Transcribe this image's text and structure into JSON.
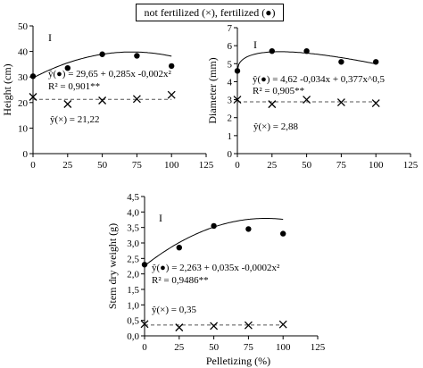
{
  "legend_text": "not fertilized (×), fertilized (●)",
  "chart_data": [
    {
      "type": "scatter",
      "ylabel": "Height (cm)",
      "xlabel": "",
      "xlim": [
        0,
        125
      ],
      "ylim": [
        0,
        50
      ],
      "xticks": [
        "0",
        "25",
        "50",
        "75",
        "100",
        "125"
      ],
      "yticks": [
        "0",
        "10",
        "20",
        "30",
        "40",
        "50"
      ],
      "grid": false,
      "error_bar_label": "I",
      "series": [
        {
          "marker": "filled-circle",
          "x": [
            0,
            25,
            50,
            75,
            100
          ],
          "y": [
            30.3,
            33.5,
            38.9,
            38.3,
            34.3
          ],
          "fit": {
            "kind": "quadratic",
            "a": 29.65,
            "b": 0.285,
            "c": -0.002
          }
        },
        {
          "marker": "cross",
          "x": [
            0,
            25,
            50,
            75,
            100
          ],
          "y": [
            22.2,
            19.4,
            20.8,
            21.4,
            23.0
          ],
          "fit": {
            "kind": "constant",
            "value": 21.22
          }
        }
      ],
      "annotations": [
        "ŷ(●) = 29,65 + 0,285x -0,002x²",
        "R² = 0,901**",
        "ŷ(×) = 21,22"
      ]
    },
    {
      "type": "scatter",
      "ylabel": "Diameter (mm)",
      "xlabel": "",
      "xlim": [
        0,
        125
      ],
      "ylim": [
        0,
        7
      ],
      "xticks": [
        "0",
        "25",
        "50",
        "75",
        "100",
        "125"
      ],
      "yticks": [
        "0",
        "1",
        "2",
        "3",
        "4",
        "5",
        "6",
        "7"
      ],
      "grid": false,
      "error_bar_label": "I",
      "series": [
        {
          "marker": "filled-circle",
          "x": [
            0,
            25,
            50,
            75,
            100
          ],
          "y": [
            4.6,
            5.7,
            5.7,
            5.1,
            5.1
          ],
          "fit": {
            "kind": "sqrt",
            "a": 4.62,
            "b": -0.034,
            "c": 0.377
          }
        },
        {
          "marker": "cross",
          "x": [
            0,
            25,
            50,
            75,
            100
          ],
          "y": [
            3.0,
            2.75,
            3.0,
            2.85,
            2.8
          ],
          "fit": {
            "kind": "constant",
            "value": 2.88
          }
        }
      ],
      "annotations": [
        "ŷ(●) = 4,62 -0,034x + 0,377x^0,5",
        "R² = 0,905**",
        "ŷ(×) = 2,88"
      ]
    },
    {
      "type": "scatter",
      "ylabel": "Stem dry weight (g)",
      "xlabel": "Pelletizing (%)",
      "xlim": [
        0,
        125
      ],
      "ylim": [
        0,
        4.5
      ],
      "xticks": [
        "0",
        "25",
        "50",
        "75",
        "100",
        "125"
      ],
      "yticks": [
        "0,0",
        "0,5",
        "1,0",
        "1,5",
        "2,0",
        "2,5",
        "3,0",
        "3,5",
        "4,0",
        "4,5"
      ],
      "grid": false,
      "error_bar_label": "I",
      "series": [
        {
          "marker": "filled-circle",
          "x": [
            0,
            25,
            50,
            75,
            100
          ],
          "y": [
            2.3,
            2.85,
            3.55,
            3.45,
            3.3
          ],
          "fit": {
            "kind": "quadratic",
            "a": 2.263,
            "b": 0.035,
            "c": -0.0002
          }
        },
        {
          "marker": "cross",
          "x": [
            0,
            25,
            50,
            75,
            100
          ],
          "y": [
            0.38,
            0.27,
            0.32,
            0.34,
            0.37
          ],
          "fit": {
            "kind": "constant",
            "value": 0.35
          }
        }
      ],
      "annotations": [
        "ŷ(●) = 2,263 + 0,035x -0,0002x²",
        "R² = 0,9486**",
        "ŷ(×) = 0,35"
      ]
    }
  ]
}
